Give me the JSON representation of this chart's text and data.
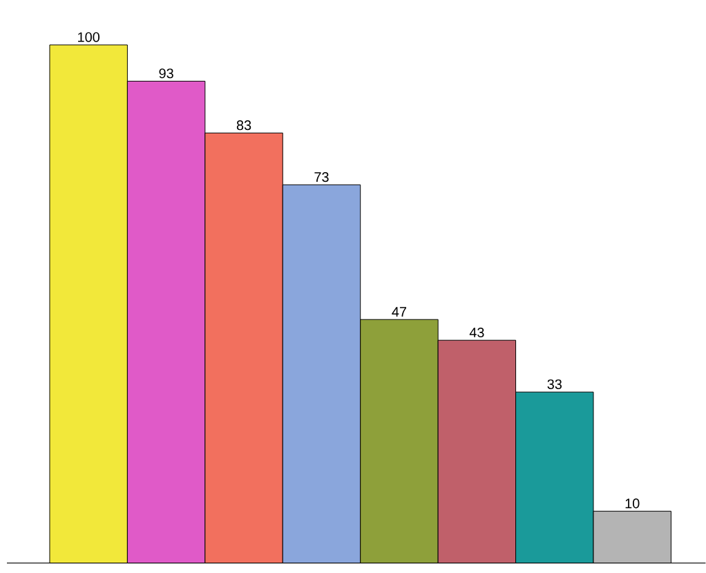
{
  "chart_data": {
    "type": "bar",
    "categories": [
      null,
      null,
      null,
      null,
      null,
      null,
      null,
      null
    ],
    "values": [
      100,
      93,
      83,
      73,
      47,
      43,
      33,
      10
    ],
    "colors": [
      "#f2e83a",
      "#e05ac8",
      "#f2705e",
      "#8aa6dc",
      "#8ea03a",
      "#c0606a",
      "#1a9a9a",
      "#b4b4b4"
    ],
    "data_labels": true
  }
}
